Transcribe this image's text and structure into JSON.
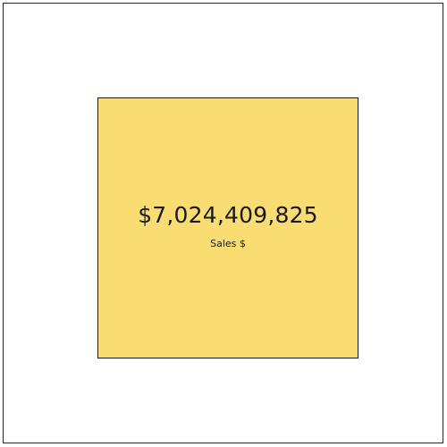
{
  "colors": {
    "card_background": "#F9DC72",
    "text": "#1A1A1A",
    "border": "#262626"
  },
  "card": {
    "value": "$7,024,409,825",
    "label": "Sales $"
  }
}
